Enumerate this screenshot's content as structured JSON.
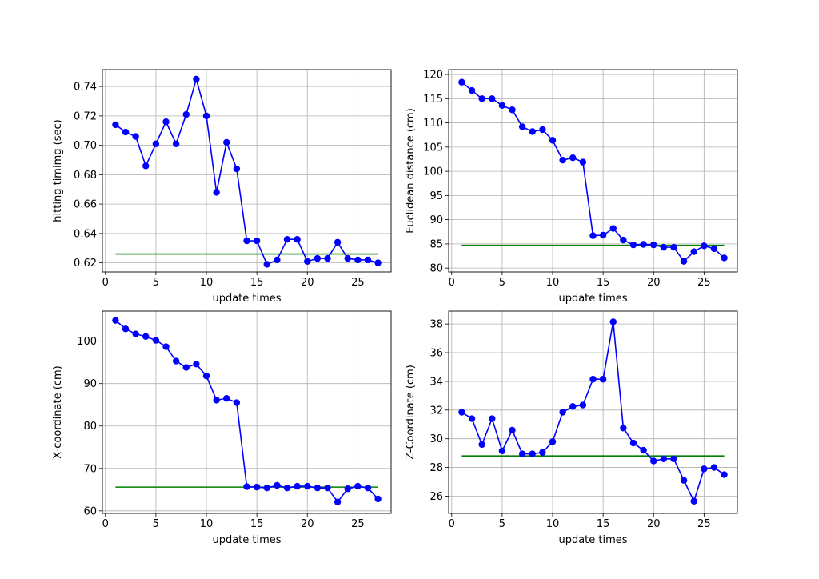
{
  "chart_data": [
    {
      "type": "line",
      "xlabel": "update times",
      "ylabel": "hitting timimg (sec)",
      "xlim": [
        -0.3,
        28.3
      ],
      "ylim": [
        0.6138,
        0.7515
      ],
      "xticks": [
        0,
        5,
        10,
        15,
        20,
        25
      ],
      "yticks": [
        0.62,
        0.64,
        0.66,
        0.68,
        0.7,
        0.72,
        0.74
      ],
      "ytick_labels": [
        "0.62",
        "0.64",
        "0.66",
        "0.68",
        "0.70",
        "0.72",
        "0.74"
      ],
      "grid": true,
      "x": [
        1,
        2,
        3,
        4,
        5,
        6,
        7,
        8,
        9,
        10,
        11,
        12,
        13,
        14,
        15,
        16,
        17,
        18,
        19,
        20,
        21,
        22,
        23,
        24,
        25,
        26,
        27
      ],
      "series": [
        {
          "color": "#0000ff",
          "marker": "circle",
          "values": [
            0.714,
            0.709,
            0.706,
            0.686,
            0.701,
            0.716,
            0.701,
            0.721,
            0.745,
            0.72,
            0.668,
            0.702,
            0.684,
            0.635,
            0.635,
            0.619,
            0.622,
            0.636,
            0.636,
            0.621,
            0.623,
            0.623,
            0.634,
            0.623,
            0.622,
            0.622,
            0.62
          ]
        }
      ],
      "reference": {
        "color": "#008000",
        "value": 0.626,
        "x": [
          1,
          27
        ]
      }
    },
    {
      "type": "line",
      "xlabel": "update times",
      "ylabel": "Euclidean distance (cm)",
      "xlim": [
        -0.3,
        28.3
      ],
      "ylim": [
        79.2,
        121.0
      ],
      "xticks": [
        0,
        5,
        10,
        15,
        20,
        25
      ],
      "yticks": [
        80,
        85,
        90,
        95,
        100,
        105,
        110,
        115,
        120
      ],
      "ytick_labels": [
        "80",
        "85",
        "90",
        "95",
        "100",
        "105",
        "110",
        "115",
        "120"
      ],
      "grid": true,
      "x": [
        1,
        2,
        3,
        4,
        5,
        6,
        7,
        8,
        9,
        10,
        11,
        12,
        13,
        14,
        15,
        16,
        17,
        18,
        19,
        20,
        21,
        22,
        23,
        24,
        25,
        26,
        27
      ],
      "series": [
        {
          "color": "#0000ff",
          "marker": "circle",
          "values": [
            118.4,
            116.7,
            115.0,
            115.0,
            113.6,
            112.7,
            109.2,
            108.2,
            108.6,
            106.4,
            102.3,
            102.8,
            101.9,
            86.7,
            86.8,
            88.2,
            85.8,
            84.8,
            84.9,
            84.8,
            84.3,
            84.3,
            81.4,
            83.4,
            84.6,
            84.0,
            82.1
          ]
        }
      ],
      "reference": {
        "color": "#008000",
        "value": 84.7,
        "x": [
          1,
          27
        ]
      }
    },
    {
      "type": "line",
      "xlabel": "update times",
      "ylabel": "X-coordinate (cm)",
      "xlim": [
        -0.3,
        28.3
      ],
      "ylim": [
        59.4,
        107.1
      ],
      "xticks": [
        0,
        5,
        10,
        15,
        20,
        25
      ],
      "yticks": [
        60,
        70,
        80,
        90,
        100
      ],
      "ytick_labels": [
        "60",
        "70",
        "80",
        "90",
        "100"
      ],
      "grid": true,
      "x": [
        1,
        2,
        3,
        4,
        5,
        6,
        7,
        8,
        9,
        10,
        11,
        12,
        13,
        14,
        15,
        16,
        17,
        18,
        19,
        20,
        21,
        22,
        23,
        24,
        25,
        26,
        27
      ],
      "series": [
        {
          "color": "#0000ff",
          "marker": "circle",
          "values": [
            104.9,
            102.9,
            101.7,
            101.1,
            100.2,
            98.7,
            95.3,
            93.8,
            94.6,
            91.8,
            86.1,
            86.5,
            85.5,
            65.7,
            65.6,
            65.4,
            66.0,
            65.4,
            65.8,
            65.8,
            65.4,
            65.4,
            62.1,
            65.2,
            65.8,
            65.4,
            62.8
          ]
        }
      ],
      "reference": {
        "color": "#008000",
        "value": 65.6,
        "x": [
          1,
          27
        ]
      }
    },
    {
      "type": "line",
      "xlabel": "update times",
      "ylabel": "Z-Coordinate (cm)",
      "xlim": [
        -0.3,
        28.3
      ],
      "ylim": [
        24.8,
        38.9
      ],
      "xticks": [
        0,
        5,
        10,
        15,
        20,
        25
      ],
      "yticks": [
        26,
        28,
        30,
        32,
        34,
        36,
        38
      ],
      "ytick_labels": [
        "26",
        "28",
        "30",
        "32",
        "34",
        "36",
        "38"
      ],
      "grid": true,
      "x": [
        1,
        2,
        3,
        4,
        5,
        6,
        7,
        8,
        9,
        10,
        11,
        12,
        13,
        14,
        15,
        16,
        17,
        18,
        19,
        20,
        21,
        22,
        23,
        24,
        25,
        26,
        27
      ],
      "series": [
        {
          "color": "#0000ff",
          "marker": "circle",
          "values": [
            31.85,
            31.4,
            29.6,
            31.4,
            29.15,
            30.6,
            28.95,
            28.95,
            29.05,
            29.8,
            31.85,
            32.25,
            32.35,
            34.15,
            34.15,
            38.15,
            30.75,
            29.7,
            29.2,
            28.45,
            28.6,
            28.6,
            27.1,
            25.65,
            27.9,
            28.0,
            27.5
          ]
        }
      ],
      "reference": {
        "color": "#008000",
        "value": 28.8,
        "x": [
          1,
          27
        ]
      }
    }
  ]
}
